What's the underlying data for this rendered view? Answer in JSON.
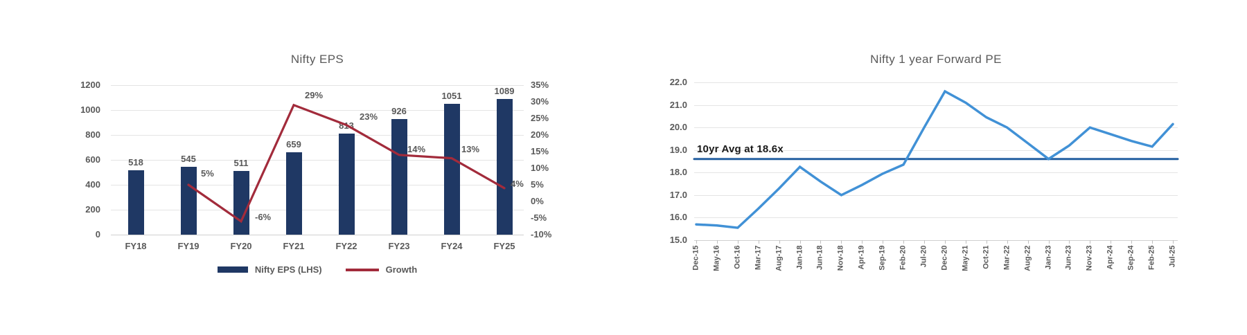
{
  "colors": {
    "background": "#FFFFFF",
    "title_text": "#595959",
    "axis_text": "#595959",
    "gridline": "#E4E4E4",
    "bar_navy": "#1F3864",
    "growth_red": "#A22B3B",
    "pe_blue": "#4191D6",
    "avg_blue": "#235FA0",
    "annotation_text": "#1A1A1A"
  },
  "chart_data": [
    {
      "type": "bar",
      "subtype": "combo-bar-line-dual-axis",
      "title": "Nifty EPS",
      "categories": [
        "FY18",
        "FY19",
        "FY20",
        "FY21",
        "FY22",
        "FY23",
        "FY24",
        "FY25"
      ],
      "series": [
        {
          "name": "Nifty EPS (LHS)",
          "kind": "bar",
          "axis": "left",
          "color": "#1F3864",
          "values": [
            518,
            545,
            511,
            659,
            813,
            926,
            1051,
            1089
          ],
          "value_labels": [
            "518",
            "545",
            "511",
            "659",
            "813",
            "926",
            "1051",
            "1089"
          ]
        },
        {
          "name": "Growth",
          "kind": "line",
          "axis": "right",
          "color": "#A22B3B",
          "values": [
            null,
            5,
            -6,
            29,
            23,
            14,
            13,
            4
          ],
          "value_labels": [
            null,
            "5%",
            "-6%",
            "29%",
            "23%",
            "14%",
            "13%",
            "4%"
          ]
        }
      ],
      "left_axis": {
        "min": 0,
        "max": 1200,
        "step": 200,
        "ticks": [
          "1200",
          "1000",
          "800",
          "600",
          "400",
          "200",
          "0"
        ]
      },
      "right_axis": {
        "min": -10,
        "max": 35,
        "step": 5,
        "ticks": [
          "35%",
          "30%",
          "25%",
          "20%",
          "15%",
          "10%",
          "5%",
          "0%",
          "-5%",
          "-10%"
        ]
      },
      "legend": [
        {
          "label": "Nifty EPS (LHS)",
          "swatch": "bar",
          "color": "#1F3864"
        },
        {
          "label": "Growth",
          "swatch": "line",
          "color": "#A22B3B"
        }
      ],
      "grid": true,
      "legend_position": "bottom"
    },
    {
      "type": "line",
      "title": "Nifty 1 year Forward PE",
      "x": [
        "Dec-15",
        "May-16",
        "Oct-16",
        "Mar-17",
        "Aug-17",
        "Jan-18",
        "Jun-18",
        "Nov-18",
        "Apr-19",
        "Sep-19",
        "Feb-20",
        "Jul-20",
        "Dec-20",
        "May-21",
        "Oct-21",
        "Mar-22",
        "Aug-22",
        "Jan-23",
        "Jun-23",
        "Nov-23",
        "Apr-24",
        "Sep-24",
        "Feb-25",
        "Jul-25"
      ],
      "series": [
        {
          "name": "Nifty 1 year Forward PE",
          "color": "#4191D6",
          "values": [
            15.7,
            15.65,
            15.55,
            16.4,
            17.3,
            18.25,
            17.6,
            17.0,
            17.45,
            17.95,
            18.35,
            20.0,
            21.6,
            21.1,
            20.45,
            20.0,
            19.3,
            18.6,
            19.2,
            20.0,
            19.7,
            19.4,
            19.15,
            20.15
          ]
        }
      ],
      "avg_line": {
        "value": 18.6,
        "label": "10yr Avg at 18.6x",
        "color": "#235FA0"
      },
      "y_axis": {
        "min": 15.0,
        "max": 22.0,
        "step": 1.0,
        "ticks": [
          "22.0",
          "21.0",
          "20.0",
          "19.0",
          "18.0",
          "17.0",
          "16.0",
          "15.0"
        ]
      },
      "grid": true,
      "legend_position": "none"
    }
  ]
}
